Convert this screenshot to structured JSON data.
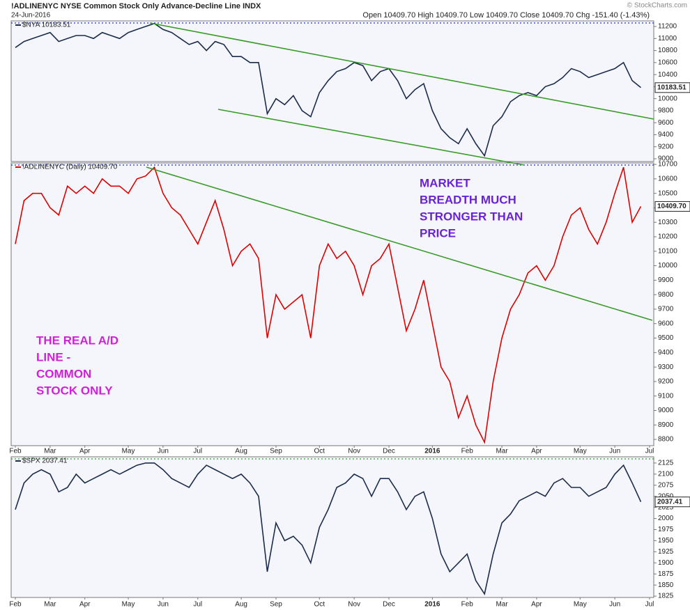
{
  "chart_data": [
    {
      "type": "line",
      "title": "!ADLINENYC NYSE Common Stock Only Advance-Decline Line INDX",
      "subtitle": "24-Jun-2016",
      "quote": "Open 10409.70 High 10409.70 Low 10409.70 Close 10409.70 Chg -151.40 (-1.43%)",
      "credit": "© StockCharts.com",
      "categories": [
        "Feb",
        null,
        null,
        null,
        "Mar",
        null,
        null,
        null,
        "Apr",
        null,
        null,
        null,
        null,
        "May",
        null,
        null,
        null,
        "Jun",
        null,
        null,
        null,
        "Jul",
        null,
        null,
        null,
        null,
        "Aug",
        null,
        null,
        null,
        "Sep",
        null,
        null,
        null,
        null,
        "Oct",
        null,
        null,
        null,
        "Nov",
        null,
        null,
        null,
        "Dec",
        null,
        null,
        null,
        null,
        "2016",
        null,
        null,
        null,
        "Feb",
        null,
        null,
        null,
        "Mar",
        null,
        null,
        null,
        "Apr",
        null,
        null,
        null,
        null,
        "May",
        null,
        null,
        null,
        "Jun",
        null,
        null,
        null,
        "Jul"
      ],
      "series": [
        {
          "name": "$NYA 10183.51",
          "color": "#1b2b4b",
          "values": [
            10850,
            10950,
            11000,
            11050,
            11100,
            10950,
            11000,
            11050,
            11050,
            11000,
            11100,
            11050,
            11000,
            11100,
            11150,
            11200,
            11250,
            11150,
            11100,
            11000,
            10900,
            10950,
            10800,
            10950,
            10900,
            10700,
            10700,
            10600,
            10600,
            9750,
            10000,
            9900,
            10050,
            9800,
            9700,
            10100,
            10300,
            10450,
            10500,
            10600,
            10550,
            10300,
            10450,
            10500,
            10300,
            10000,
            10150,
            10250,
            9800,
            9500,
            9350,
            9250,
            9500,
            9250,
            9050,
            9550,
            9700,
            9950,
            10050,
            10100,
            10050,
            10200,
            10250,
            10350,
            10500,
            10450,
            10350,
            10400,
            10450,
            10500,
            10600,
            10300,
            10183.51,
            null
          ],
          "value_labels": [
            null,
            null,
            null,
            null,
            null,
            null,
            null,
            null,
            null,
            null,
            null,
            null,
            null,
            null,
            null,
            null,
            null,
            null,
            null,
            null,
            null,
            null,
            null,
            null,
            null,
            null,
            null,
            null,
            null,
            null,
            null,
            null,
            null,
            null,
            null,
            null,
            null,
            null,
            null,
            null,
            null,
            null,
            null,
            null,
            null,
            null,
            null,
            null,
            null,
            null,
            null,
            null,
            null,
            null,
            null,
            null,
            null,
            null,
            null,
            null,
            null,
            null,
            null,
            null,
            null,
            null,
            null,
            null,
            null,
            null,
            null,
            null,
            "10183.51",
            null
          ]
        }
      ],
      "ylim": [
        8954,
        11293
      ],
      "yticks": [
        9000,
        9200,
        9400,
        9600,
        9800,
        10000,
        10200,
        10400,
        10600,
        10800,
        11000,
        11200
      ]
    },
    {
      "type": "line",
      "categories": [
        "Feb",
        null,
        null,
        null,
        "Mar",
        null,
        null,
        null,
        "Apr",
        null,
        null,
        null,
        null,
        "May",
        null,
        null,
        null,
        "Jun",
        null,
        null,
        null,
        "Jul",
        null,
        null,
        null,
        null,
        "Aug",
        null,
        null,
        null,
        "Sep",
        null,
        null,
        null,
        null,
        "Oct",
        null,
        null,
        null,
        "Nov",
        null,
        null,
        null,
        "Dec",
        null,
        null,
        null,
        null,
        "2016",
        null,
        null,
        null,
        "Feb",
        null,
        null,
        null,
        "Mar",
        null,
        null,
        null,
        "Apr",
        null,
        null,
        null,
        null,
        "May",
        null,
        null,
        null,
        "Jun",
        null,
        null,
        null,
        "Jul"
      ],
      "series": [
        {
          "name": "!ADLINENYC (Daily) 10409.70",
          "color": "#e00000",
          "values": [
            10150,
            10450,
            10500,
            10500,
            10400,
            10350,
            10550,
            10500,
            10550,
            10500,
            10600,
            10550,
            10550,
            10500,
            10600,
            10620,
            10680,
            10500,
            10400,
            10350,
            10250,
            10150,
            10300,
            10450,
            10250,
            10000,
            10100,
            10150,
            10050,
            9500,
            9800,
            9700,
            9750,
            9800,
            9500,
            10000,
            10150,
            10050,
            10100,
            10000,
            9800,
            10000,
            10050,
            10150,
            9850,
            9550,
            9700,
            9900,
            9600,
            9300,
            9200,
            8950,
            9100,
            8900,
            8780,
            9200,
            9500,
            9700,
            9800,
            9950,
            10000,
            9900,
            10000,
            10200,
            10350,
            10400,
            10250,
            10150,
            10300,
            10500,
            10680,
            10300,
            10409.7,
            null
          ],
          "value_labels": [
            null,
            null,
            null,
            null,
            null,
            null,
            null,
            null,
            null,
            null,
            null,
            null,
            null,
            null,
            null,
            null,
            null,
            null,
            null,
            null,
            null,
            null,
            null,
            null,
            null,
            null,
            null,
            null,
            null,
            null,
            null,
            null,
            null,
            null,
            null,
            null,
            null,
            null,
            null,
            null,
            null,
            null,
            null,
            null,
            null,
            null,
            null,
            null,
            null,
            null,
            null,
            null,
            null,
            null,
            null,
            null,
            null,
            null,
            null,
            null,
            null,
            null,
            null,
            null,
            null,
            null,
            null,
            null,
            null,
            null,
            null,
            null,
            "10409.70",
            null
          ]
        }
      ],
      "ylim": [
        8757,
        10710
      ],
      "yticks": [
        8800,
        8900,
        9000,
        9100,
        9200,
        9300,
        9400,
        9500,
        9600,
        9700,
        9800,
        9900,
        10000,
        10100,
        10200,
        10300,
        10400,
        10500,
        10600,
        10700
      ],
      "annotations": [
        {
          "text": [
            "MARKET",
            "BREADTH MUCH",
            "STRONGER THAN",
            "PRICE"
          ],
          "color": "#6a22d6"
        },
        {
          "text": [
            "THE REAL A/D",
            "LINE -",
            "COMMON",
            "STOCK ONLY"
          ],
          "color": "#d020d8"
        }
      ]
    },
    {
      "type": "line",
      "categories": [
        "Feb",
        null,
        null,
        null,
        "Mar",
        null,
        null,
        null,
        "Apr",
        null,
        null,
        null,
        null,
        "May",
        null,
        null,
        null,
        "Jun",
        null,
        null,
        null,
        "Jul",
        null,
        null,
        null,
        null,
        "Aug",
        null,
        null,
        null,
        "Sep",
        null,
        null,
        null,
        null,
        "Oct",
        null,
        null,
        null,
        "Nov",
        null,
        null,
        null,
        "Dec",
        null,
        null,
        null,
        null,
        "2016",
        null,
        null,
        null,
        "Feb",
        null,
        null,
        null,
        "Mar",
        null,
        null,
        null,
        "Apr",
        null,
        null,
        null,
        null,
        "May",
        null,
        null,
        null,
        "Jun",
        null,
        null,
        null,
        "Jul"
      ],
      "series": [
        {
          "name": "$SPX 2037.41",
          "color": "#1b2b4b",
          "values": [
            2020,
            2080,
            2100,
            2110,
            2100,
            2060,
            2070,
            2100,
            2080,
            2090,
            2100,
            2110,
            2100,
            2110,
            2120,
            2125,
            2125,
            2110,
            2090,
            2080,
            2070,
            2100,
            2120,
            2110,
            2100,
            2090,
            2100,
            2080,
            2050,
            1880,
            1990,
            1950,
            1960,
            1940,
            1900,
            1980,
            2020,
            2070,
            2080,
            2100,
            2090,
            2050,
            2090,
            2090,
            2060,
            2020,
            2050,
            2060,
            2000,
            1920,
            1880,
            1900,
            1920,
            1860,
            1830,
            1920,
            1990,
            2010,
            2040,
            2050,
            2060,
            2050,
            2080,
            2090,
            2070,
            2070,
            2050,
            2060,
            2070,
            2100,
            2120,
            2080,
            2037.41,
            null
          ],
          "value_labels": [
            null,
            null,
            null,
            null,
            null,
            null,
            null,
            null,
            null,
            null,
            null,
            null,
            null,
            null,
            null,
            null,
            null,
            null,
            null,
            null,
            null,
            null,
            null,
            null,
            null,
            null,
            null,
            null,
            null,
            null,
            null,
            null,
            null,
            null,
            null,
            null,
            null,
            null,
            null,
            null,
            null,
            null,
            null,
            null,
            null,
            null,
            null,
            null,
            null,
            null,
            null,
            null,
            null,
            null,
            null,
            null,
            null,
            null,
            null,
            null,
            null,
            null,
            null,
            null,
            null,
            null,
            null,
            null,
            null,
            null,
            null,
            null,
            "2037.41",
            null
          ]
        }
      ],
      "ylim": [
        1822,
        2139
      ],
      "yticks": [
        1825,
        1850,
        1875,
        1900,
        1925,
        1950,
        1975,
        2000,
        2025,
        2050,
        2075,
        2100,
        2125
      ]
    }
  ]
}
